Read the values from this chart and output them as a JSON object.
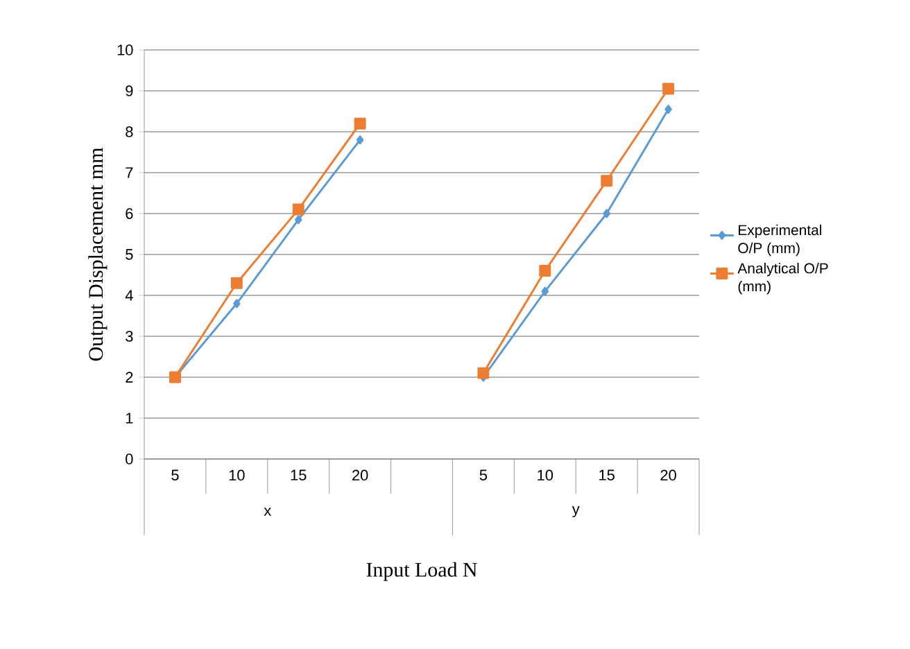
{
  "chart_data": {
    "type": "line",
    "xlabel": "Input Load N",
    "ylabel": "Output Displacement mm",
    "categories": [
      "5",
      "10",
      "15",
      "20",
      null,
      "5",
      "10",
      "15",
      "20"
    ],
    "series": [
      {
        "name": "Experimental O/P  (mm)",
        "color": "#5b9bd5",
        "marker": "diamond",
        "values": [
          2.0,
          3.8,
          5.85,
          7.8,
          null,
          2.0,
          4.1,
          6.0,
          8.55
        ]
      },
      {
        "name": "Analytical O/P (mm)",
        "color": "#ed7d31",
        "marker": "square",
        "values": [
          2.0,
          4.3,
          6.1,
          8.2,
          null,
          2.1,
          4.6,
          6.8,
          9.05
        ]
      }
    ],
    "annotations": [
      "x",
      "y"
    ],
    "ylim": [
      0,
      10
    ],
    "yticks": [
      0,
      1,
      2,
      3,
      4,
      5,
      6,
      7,
      8,
      9,
      10
    ],
    "grid": "y",
    "legend": "right"
  }
}
